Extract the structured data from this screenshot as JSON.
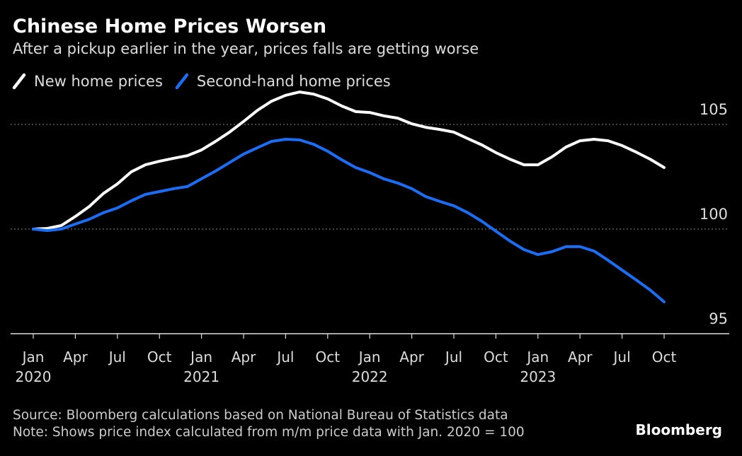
{
  "chart_data": {
    "type": "line",
    "title": "Chinese Home Prices Worsen",
    "subtitle": "After a pickup earlier in the year, prices falls are getting worse",
    "categories": [
      "Jan 2020",
      null,
      null,
      "Apr",
      null,
      null,
      "Jul",
      null,
      null,
      "Oct",
      null,
      null,
      "Jan 2021",
      null,
      null,
      "Apr",
      null,
      null,
      "Jul",
      null,
      null,
      "Oct",
      null,
      null,
      "Jan 2022",
      null,
      null,
      "Apr",
      null,
      null,
      "Jul",
      null,
      null,
      "Oct",
      null,
      null,
      "Jan 2023",
      null,
      null,
      "Apr",
      null,
      null,
      "Jul",
      null,
      null,
      "Oct"
    ],
    "series": [
      {
        "name": "New home prices",
        "color": "#ffffff",
        "values": [
          100,
          100.03,
          100.17,
          100.6,
          101.08,
          101.7,
          102.16,
          102.74,
          103.07,
          103.24,
          103.38,
          103.51,
          103.78,
          104.19,
          104.63,
          105.14,
          105.68,
          106.11,
          106.39,
          106.55,
          106.45,
          106.22,
          105.88,
          105.61,
          105.57,
          105.41,
          105.3,
          105.03,
          104.86,
          104.76,
          104.63,
          104.32,
          104.02,
          103.65,
          103.34,
          103.07,
          103.07,
          103.45,
          103.92,
          104.22,
          104.29,
          104.22,
          103.99,
          103.68,
          103.34,
          102.94
        ]
      },
      {
        "name": "Second-hand home prices",
        "color": "#1a6ef5",
        "values": [
          100,
          99.93,
          100,
          100.24,
          100.47,
          100.78,
          101.01,
          101.35,
          101.66,
          101.79,
          101.93,
          102.03,
          102.4,
          102.77,
          103.18,
          103.58,
          103.89,
          104.19,
          104.29,
          104.26,
          104.05,
          103.72,
          103.31,
          102.94,
          102.7,
          102.4,
          102.2,
          101.93,
          101.55,
          101.32,
          101.11,
          100.78,
          100.37,
          99.9,
          99.43,
          99.02,
          98.78,
          98.92,
          99.16,
          99.16,
          98.95,
          98.51,
          98.04,
          97.57,
          97.09,
          96.52
        ]
      }
    ],
    "ylim": [
      95,
      106.8
    ],
    "yticks": [
      95,
      100,
      105
    ],
    "grid": true,
    "legend": "top-left",
    "source": "Source: Bloomberg calculations based on National Bureau of Statistics data",
    "note": "Note: Shows price index calculated from m/m price data with Jan. 2020 = 100",
    "logo": "Bloomberg"
  }
}
